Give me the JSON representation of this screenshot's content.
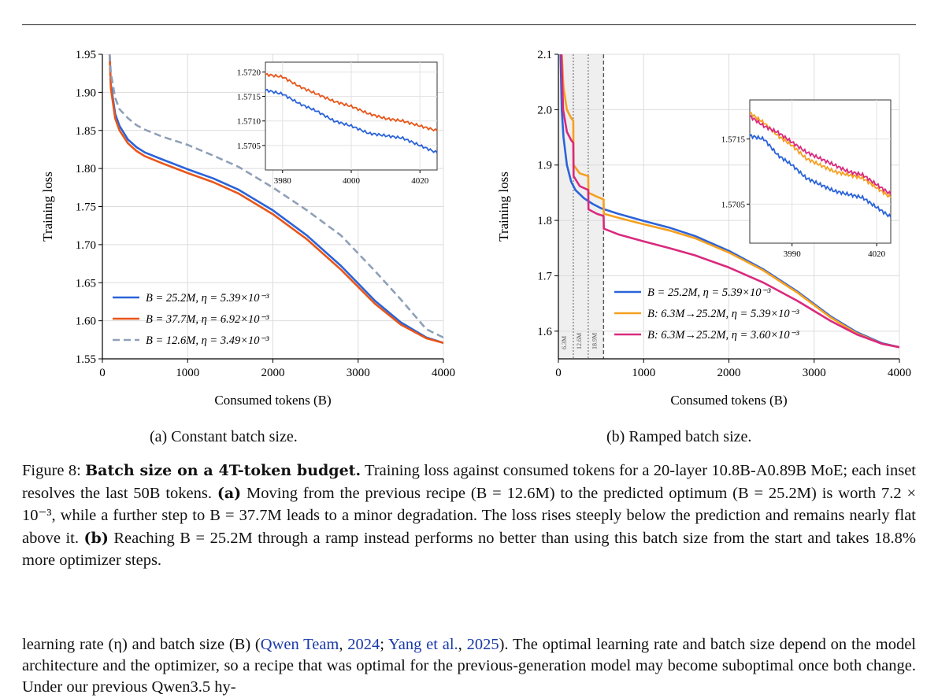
{
  "subcaptions": {
    "a": "(a) Constant batch size.",
    "b": "(b) Ramped batch size."
  },
  "caption": {
    "label": "Figure 8:",
    "bold": "Batch size on a 4T-token budget.",
    "t1": "Training loss against consumed tokens for a 20-layer 10.8B-A0.89B MoE; each inset resolves the last 50B tokens.",
    "a_tag": "(a)",
    "t2": "Moving from the previous recipe (B = 12.6M) to the predicted optimum (B = 25.2M) is worth 7.2 × 10⁻³, while a further step to B = 37.7M leads to a minor degradation. The loss rises steeply below the prediction and remains nearly flat above it.",
    "b_tag": "(b)",
    "t3": "Reaching B = 25.2M through a ramp instead performs no better than using this batch size from the start and takes 18.8% more optimizer steps."
  },
  "body": {
    "t1": "learning rate (η) and batch size (B) (",
    "cite1": "Qwen Team",
    "sep1": ", ",
    "cite1y": "2024",
    "sep2": "; ",
    "cite2": "Yang et al.",
    "sep3": ", ",
    "cite2y": "2025",
    "t2": "). The optimal learning rate and batch size depend on the model architecture and the optimizer, so a recipe that was optimal for the previous-generation model may become suboptimal once both change. Under our previous Qwen3.5 hy-"
  },
  "chart_data": [
    {
      "type": "line",
      "xlabel": "Consumed tokens (B)",
      "ylabel": "Training loss",
      "xlim": [
        0,
        4000
      ],
      "ylim": [
        1.55,
        1.95
      ],
      "xticks": [
        "0",
        "1000",
        "2000",
        "3000",
        "4000"
      ],
      "yticks": [
        "1.55",
        "1.60",
        "1.65",
        "1.70",
        "1.75",
        "1.80",
        "1.85",
        "1.90",
        "1.95"
      ],
      "grid": true,
      "legend_position": "lower-left",
      "series": [
        {
          "name": "B = 25.2M,  η = 5.39×10⁻³",
          "color": "#2b63d9",
          "dash": "solid",
          "x": [
            85,
            100,
            150,
            200,
            300,
            400,
            500,
            700,
            1000,
            1300,
            1600,
            2000,
            2400,
            2800,
            3200,
            3500,
            3800,
            4000
          ],
          "y": [
            1.95,
            1.91,
            1.872,
            1.856,
            1.838,
            1.828,
            1.821,
            1.812,
            1.799,
            1.787,
            1.772,
            1.745,
            1.712,
            1.672,
            1.626,
            1.598,
            1.578,
            1.571
          ]
        },
        {
          "name": "B = 37.7M,  η = 6.92×10⁻³",
          "color": "#e8561a",
          "dash": "solid",
          "x": [
            85,
            100,
            150,
            200,
            300,
            400,
            500,
            700,
            1000,
            1300,
            1600,
            2000,
            2400,
            2800,
            3200,
            3500,
            3800,
            4000
          ],
          "y": [
            1.95,
            1.905,
            1.866,
            1.85,
            1.833,
            1.823,
            1.816,
            1.807,
            1.794,
            1.782,
            1.767,
            1.74,
            1.707,
            1.667,
            1.622,
            1.595,
            1.577,
            1.571
          ]
        },
        {
          "name": "B = 12.6M,  η = 3.49×10⁻³",
          "color": "#8fa0b8",
          "dash": "dashed",
          "x": [
            85,
            100,
            150,
            200,
            300,
            400,
            500,
            700,
            1000,
            1300,
            1600,
            2000,
            2400,
            2800,
            3200,
            3500,
            3800,
            4000
          ],
          "y": [
            1.95,
            1.925,
            1.893,
            1.878,
            1.866,
            1.857,
            1.851,
            1.842,
            1.831,
            1.817,
            1.802,
            1.775,
            1.745,
            1.712,
            1.665,
            1.628,
            1.589,
            1.578
          ]
        }
      ],
      "inset": {
        "xlim": [
          3975,
          4025
        ],
        "ylim": [
          1.57,
          1.5722
        ],
        "xticks": [
          "3980",
          "4000",
          "4020"
        ],
        "yticks": [
          "1.5705",
          "1.5710",
          "1.5715",
          "1.5720"
        ],
        "series": [
          {
            "name": "B = 25.2M",
            "color": "#2b63d9",
            "x": [
              3975,
              3980,
              3985,
              3990,
              3995,
              4000,
              4005,
              4010,
              4015,
              4020,
              4025
            ],
            "y": [
              1.57163,
              1.57155,
              1.57135,
              1.5712,
              1.571,
              1.5709,
              1.57075,
              1.5707,
              1.57065,
              1.5705,
              1.57035
            ]
          },
          {
            "name": "B = 37.7M",
            "color": "#e8561a",
            "x": [
              3975,
              3980,
              3985,
              3990,
              3995,
              4000,
              4005,
              4010,
              4015,
              4020,
              4025
            ],
            "y": [
              1.57195,
              1.5719,
              1.5717,
              1.57155,
              1.5714,
              1.5713,
              1.57115,
              1.57105,
              1.571,
              1.5709,
              1.5708
            ]
          }
        ]
      }
    },
    {
      "type": "line",
      "xlabel": "Consumed tokens (B)",
      "ylabel": "Training loss",
      "xlim": [
        0,
        4000
      ],
      "ylim": [
        1.55,
        2.1
      ],
      "xticks": [
        "0",
        "1000",
        "2000",
        "3000",
        "4000"
      ],
      "yticks": [
        "1.6",
        "1.7",
        "1.8",
        "1.9",
        "2.0",
        "2.1"
      ],
      "grid": true,
      "legend_position": "lower-center",
      "ramp_stages": [
        {
          "label": "6.3M",
          "x": 175
        },
        {
          "label": "12.6M",
          "x": 350
        },
        {
          "label": "18.9M",
          "x": 530
        }
      ],
      "series": [
        {
          "name": "B = 25.2M,  η = 5.39×10⁻³",
          "color": "#2b63d9",
          "x": [
            25,
            40,
            60,
            100,
            150,
            200,
            300,
            400,
            500,
            700,
            1000,
            1300,
            1600,
            2000,
            2400,
            2800,
            3200,
            3500,
            3800,
            4000
          ],
          "y": [
            2.1,
            2.0,
            1.95,
            1.9,
            1.87,
            1.855,
            1.84,
            1.83,
            1.822,
            1.812,
            1.799,
            1.787,
            1.772,
            1.745,
            1.712,
            1.672,
            1.626,
            1.598,
            1.578,
            1.571
          ]
        },
        {
          "name": "B: 6.3M→25.2M,  η = 5.39×10⁻³",
          "color": "#f5a020",
          "x": [
            40,
            60,
            100,
            150,
            175,
            178,
            250,
            350,
            353,
            450,
            530,
            533,
            700,
            1000,
            1300,
            1600,
            2000,
            2400,
            2800,
            3200,
            3500,
            3800,
            4000
          ],
          "y": [
            2.1,
            2.04,
            2.0,
            1.985,
            1.98,
            1.9,
            1.885,
            1.88,
            1.85,
            1.843,
            1.838,
            1.812,
            1.805,
            1.793,
            1.782,
            1.768,
            1.742,
            1.71,
            1.67,
            1.624,
            1.596,
            1.577,
            1.571
          ]
        },
        {
          "name": "B: 6.3M→25.2M,  η = 3.60×10⁻³",
          "color": "#d92a7e",
          "x": [
            35,
            55,
            100,
            150,
            175,
            178,
            250,
            350,
            353,
            450,
            530,
            533,
            700,
            1000,
            1300,
            1600,
            2000,
            2400,
            2800,
            3200,
            3500,
            3800,
            4000
          ],
          "y": [
            2.1,
            2.0,
            1.96,
            1.945,
            1.94,
            1.88,
            1.862,
            1.855,
            1.82,
            1.812,
            1.808,
            1.785,
            1.775,
            1.762,
            1.75,
            1.737,
            1.715,
            1.688,
            1.655,
            1.618,
            1.594,
            1.577,
            1.571
          ]
        }
      ],
      "inset": {
        "xlim": [
          3975,
          4025
        ],
        "ylim": [
          1.5699,
          1.5721
        ],
        "xticks": [
          "3990",
          "4020"
        ],
        "yticks": [
          "1.5705",
          "1.5715"
        ],
        "series": [
          {
            "name": "B = 25.2M",
            "color": "#2b63d9",
            "x": [
              3975,
              3980,
              3985,
              3990,
              3995,
              4000,
              4005,
              4010,
              4015,
              4020,
              4025
            ],
            "y": [
              1.57155,
              1.5715,
              1.57125,
              1.5711,
              1.5709,
              1.5708,
              1.5707,
              1.57065,
              1.5706,
              1.57045,
              1.5703
            ]
          },
          {
            "name": "B: 6.3M→25.2M, η = 5.39×10⁻³",
            "color": "#f5a020",
            "x": [
              3975,
              3980,
              3985,
              3990,
              3995,
              4000,
              4005,
              4010,
              4015,
              4020,
              4025
            ],
            "y": [
              1.5719,
              1.57175,
              1.57155,
              1.5714,
              1.5712,
              1.5711,
              1.571,
              1.57095,
              1.5709,
              1.57075,
              1.5706
            ]
          },
          {
            "name": "B: 6.3M→25.2M, η = 3.60×10⁻³",
            "color": "#d92a7e",
            "x": [
              3975,
              3980,
              3985,
              3990,
              3995,
              4000,
              4005,
              4010,
              4015,
              4020,
              4025
            ],
            "y": [
              1.57185,
              1.5717,
              1.5716,
              1.57145,
              1.5713,
              1.5712,
              1.5711,
              1.571,
              1.57095,
              1.5708,
              1.57065
            ]
          }
        ]
      }
    }
  ]
}
